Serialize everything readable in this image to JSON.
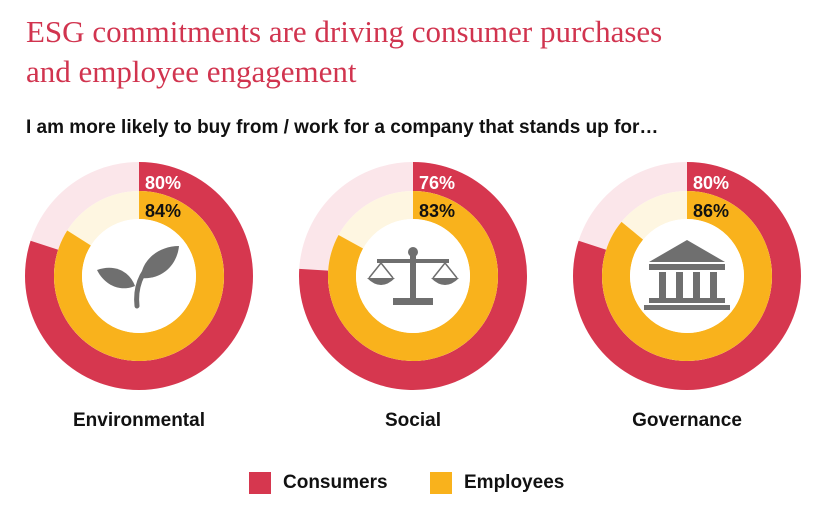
{
  "title_line1": "ESG commitments are driving consumer purchases",
  "title_line2": "and employee engagement",
  "subtitle": "I am more likely to buy from / work for a company that stands up for…",
  "colors": {
    "consumers": "#d6374f",
    "employees": "#f9b21c",
    "consumers_track": "#fbe6ea",
    "employees_track": "#fef6e1",
    "icon": "#6f6f6f"
  },
  "legend": {
    "consumers_label": "Consumers",
    "employees_label": "Employees"
  },
  "chart_data": {
    "type": "donut",
    "categories": [
      "Environmental",
      "Social",
      "Governance"
    ],
    "series": [
      {
        "name": "Consumers",
        "values": [
          80,
          76,
          80
        ],
        "labels": [
          "80%",
          "76%",
          "80%"
        ]
      },
      {
        "name": "Employees",
        "values": [
          84,
          83,
          86
        ],
        "labels": [
          "84%",
          "83%",
          "86%"
        ]
      }
    ],
    "icons": [
      "leaf-icon",
      "scales-icon",
      "building-icon"
    ]
  }
}
